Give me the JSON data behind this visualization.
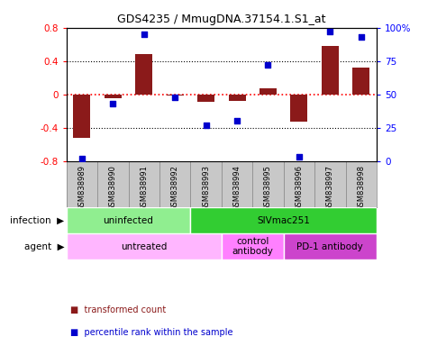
{
  "title": "GDS4235 / MmugDNA.37154.1.S1_at",
  "samples": [
    "GSM838989",
    "GSM838990",
    "GSM838991",
    "GSM838992",
    "GSM838993",
    "GSM838994",
    "GSM838995",
    "GSM838996",
    "GSM838997",
    "GSM838998"
  ],
  "transformed_count": [
    -0.52,
    -0.05,
    0.48,
    -0.02,
    -0.09,
    -0.08,
    0.07,
    -0.33,
    0.58,
    0.32
  ],
  "percentile_rank": [
    2,
    43,
    95,
    48,
    27,
    30,
    72,
    3,
    97,
    93
  ],
  "bar_color": "#8B1A1A",
  "dot_color": "#0000CD",
  "ylim_left": [
    -0.8,
    0.8
  ],
  "ylim_right": [
    0,
    100
  ],
  "yticks_left": [
    -0.8,
    -0.4,
    0,
    0.4,
    0.8
  ],
  "yticks_right": [
    0,
    25,
    50,
    75,
    100
  ],
  "dotted_lines": [
    -0.4,
    0.4
  ],
  "infection_labels": [
    {
      "text": "uninfected",
      "start": 0,
      "end": 4,
      "color": "#90EE90"
    },
    {
      "text": "SIVmac251",
      "start": 4,
      "end": 10,
      "color": "#32CD32"
    }
  ],
  "agent_labels": [
    {
      "text": "untreated",
      "start": 0,
      "end": 5,
      "color": "#FFB6FF"
    },
    {
      "text": "control\nantibody",
      "start": 5,
      "end": 7,
      "color": "#FF80FF"
    },
    {
      "text": "PD-1 antibody",
      "start": 7,
      "end": 10,
      "color": "#CC44CC"
    }
  ],
  "legend_items": [
    {
      "label": "transformed count",
      "color": "#8B1A1A"
    },
    {
      "label": "percentile rank within the sample",
      "color": "#0000CD"
    }
  ],
  "infection_row_label": "infection",
  "agent_row_label": "agent",
  "sample_bg_color": "#C8C8C8",
  "bar_width": 0.55
}
